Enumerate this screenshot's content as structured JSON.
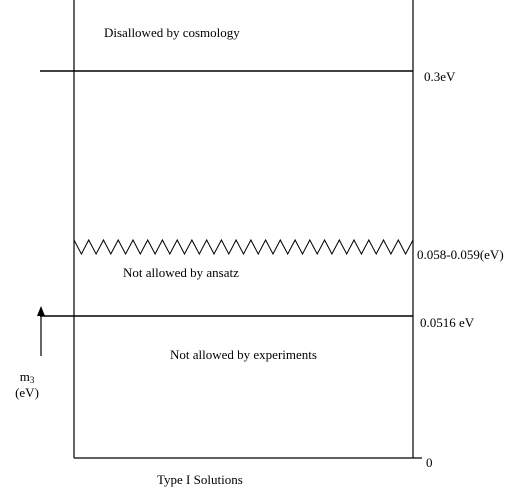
{
  "regions": {
    "top": "Disallowed by cosmology",
    "middle": "Not allowed by ansatz",
    "bottom": "Not allowed by experiments"
  },
  "levels": {
    "cosmology": "0.3eV",
    "ansatz": "0.058-0.059(eV)",
    "experiments": "0.0516 eV",
    "zero": "0"
  },
  "axis": {
    "symbol": "m",
    "subscript": "3",
    "unit": "(eV)",
    "arrow": "↑"
  },
  "caption": "Type I Solutions"
}
